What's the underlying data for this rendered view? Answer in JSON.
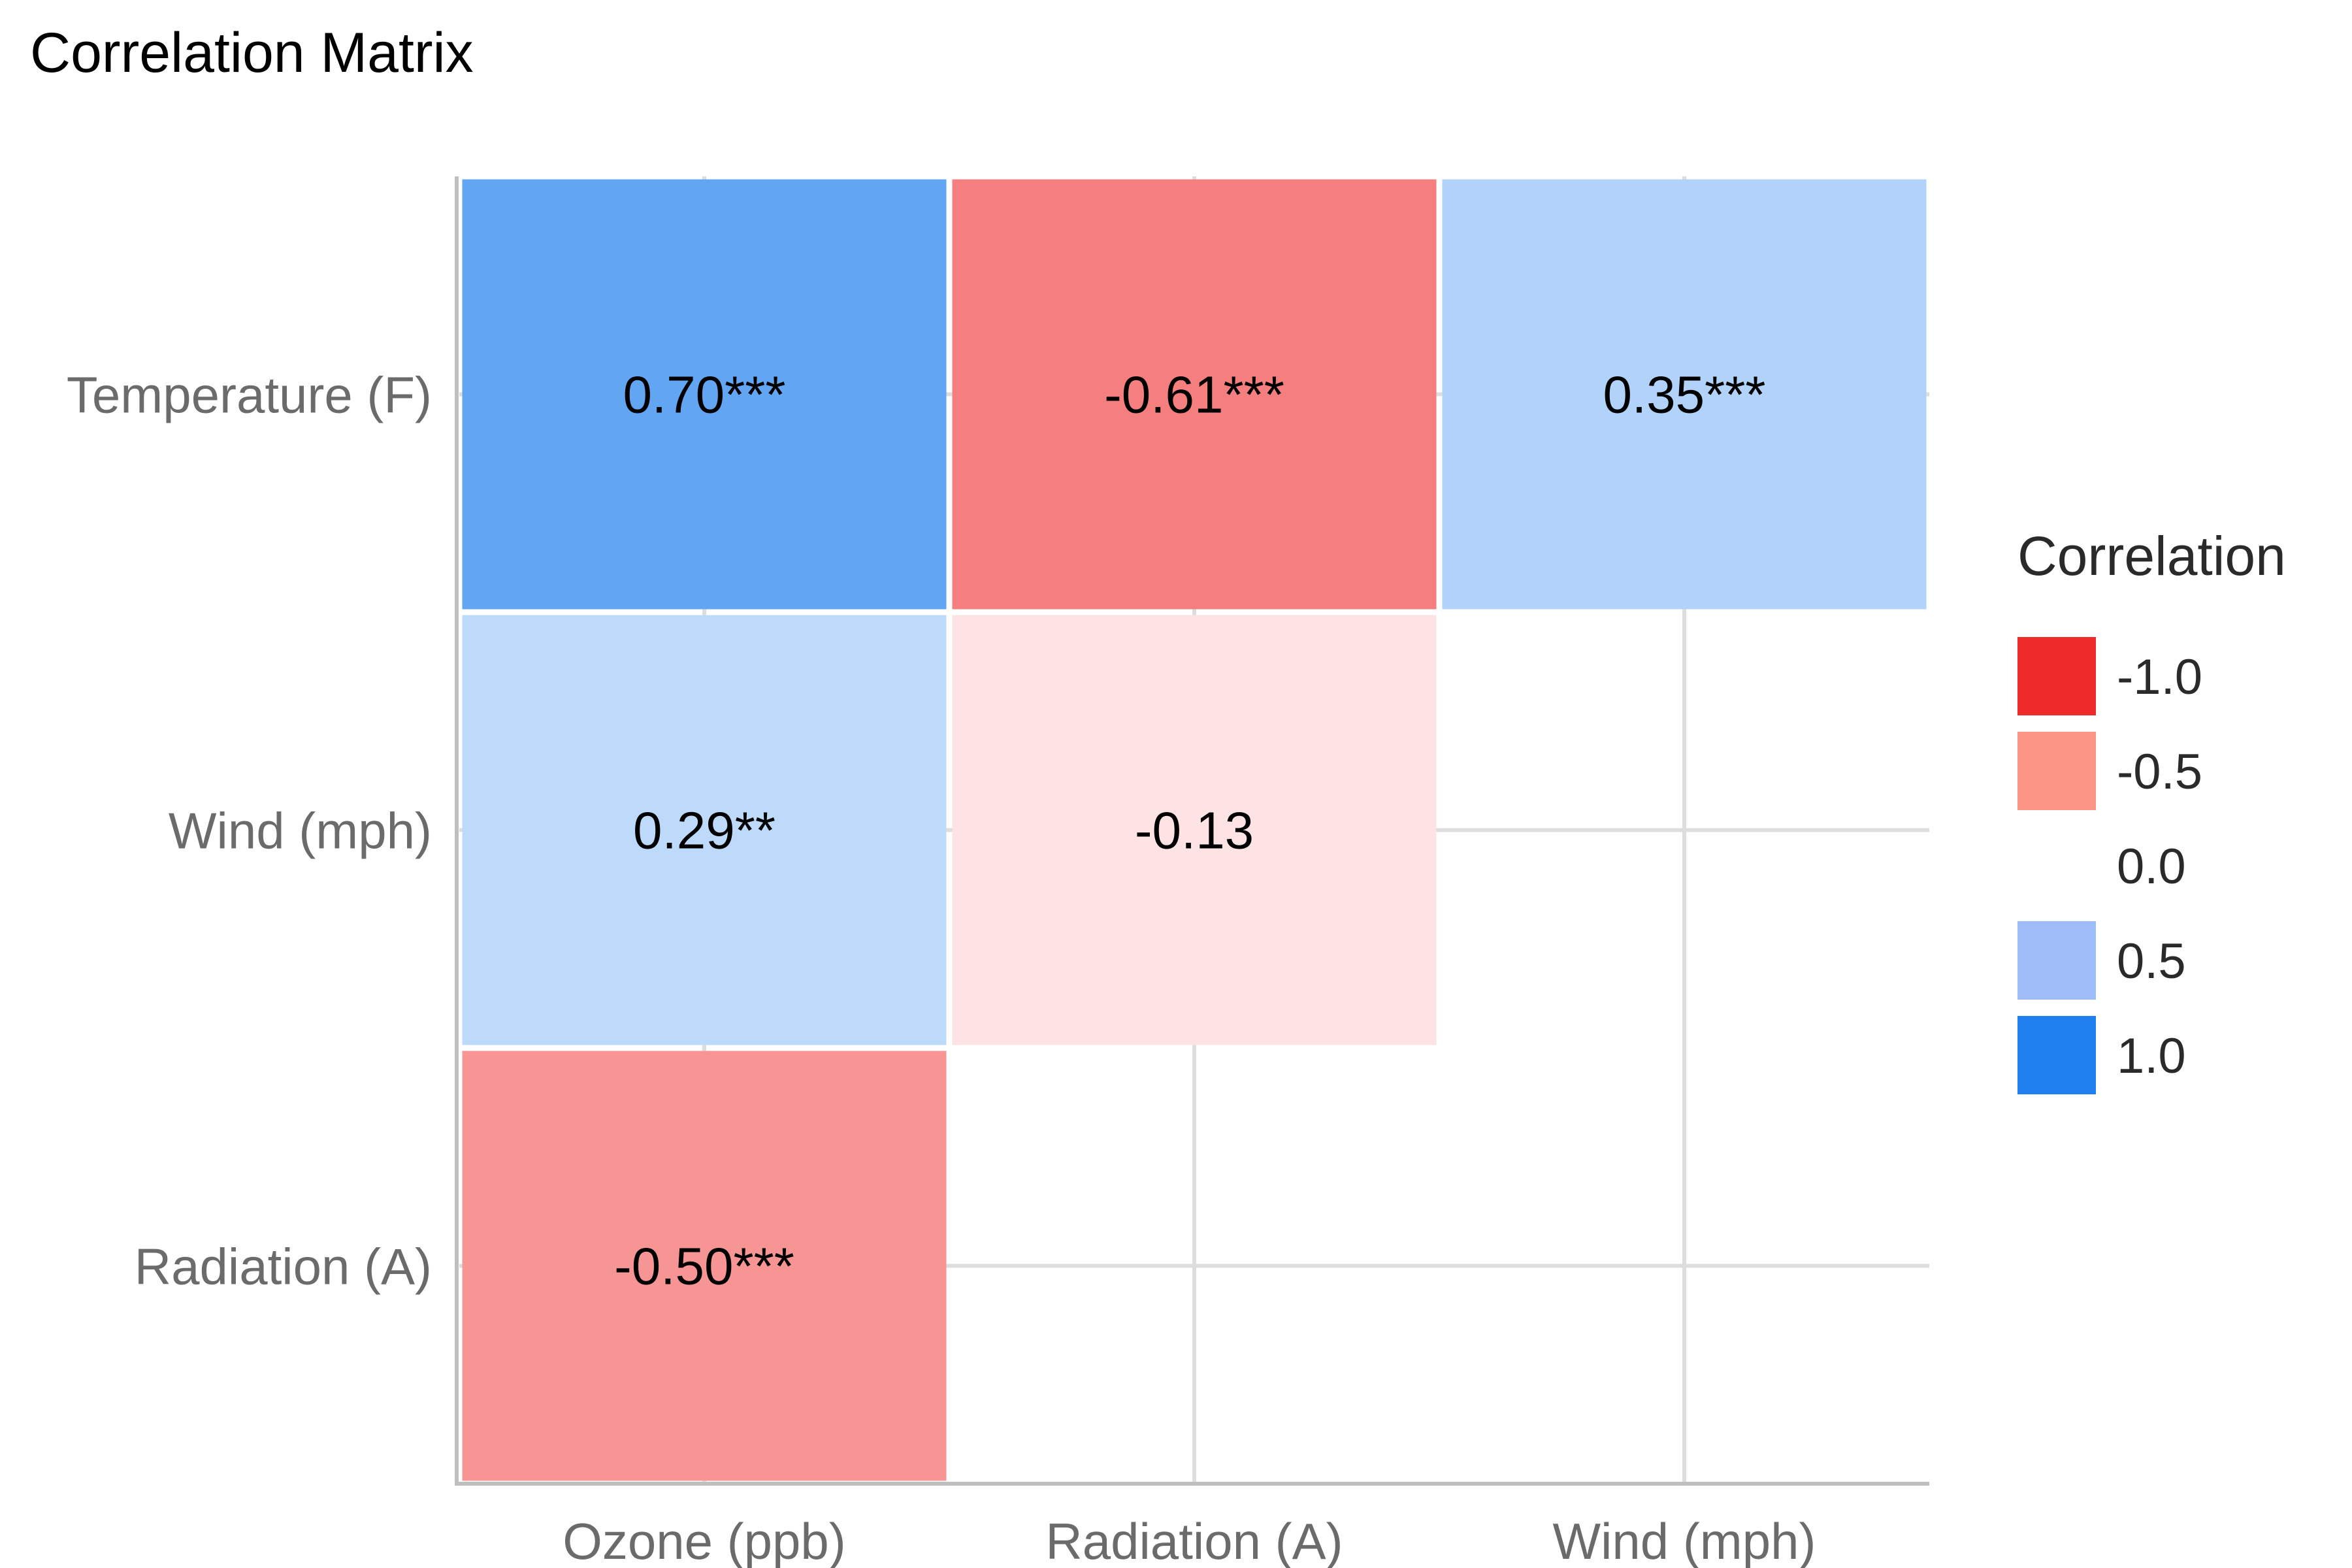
{
  "chart_data": {
    "type": "heatmap",
    "title": "Correlation Matrix",
    "xlabel": "",
    "ylabel": "",
    "x_categories": [
      "Ozone (ppb)",
      "Radiation (A)",
      "Wind (mph)"
    ],
    "y_categories": [
      "Temperature (F)",
      "Wind (mph)",
      "Radiation (A)"
    ],
    "cells": [
      {
        "x": "Ozone (ppb)",
        "y": "Temperature (F)",
        "value": 0.7,
        "label": "0.70***"
      },
      {
        "x": "Radiation (A)",
        "y": "Temperature (F)",
        "value": -0.61,
        "label": "-0.61***"
      },
      {
        "x": "Wind (mph)",
        "y": "Temperature (F)",
        "value": 0.35,
        "label": "0.35***"
      },
      {
        "x": "Ozone (ppb)",
        "y": "Wind (mph)",
        "value": 0.29,
        "label": "0.29**"
      },
      {
        "x": "Radiation (A)",
        "y": "Wind (mph)",
        "value": -0.13,
        "label": "-0.13"
      },
      {
        "x": "Ozone (ppb)",
        "y": "Radiation (A)",
        "value": -0.5,
        "label": "-0.50***"
      }
    ],
    "color_scale": {
      "min": -1.0,
      "max": 1.0,
      "negative_color": "#ee2b2b",
      "mid_color": "#ffffff",
      "positive_color": "#1f7fee"
    },
    "legend": {
      "title": "Correlation",
      "placement": "right",
      "entries": [
        {
          "label": "-1.0",
          "value": -1.0,
          "color": "#ee2b2b"
        },
        {
          "label": "-0.5",
          "value": -0.5,
          "color": "#fb9585"
        },
        {
          "label": "0.0",
          "value": 0.0,
          "color": "#ffffff"
        },
        {
          "label": "0.5",
          "value": 0.5,
          "color": "#9ebcf8"
        },
        {
          "label": "1.0",
          "value": 1.0,
          "color": "#1f7fee"
        }
      ]
    },
    "grid": true,
    "grid_color": "#dddddd",
    "axis_color": "#bfbfbf"
  }
}
